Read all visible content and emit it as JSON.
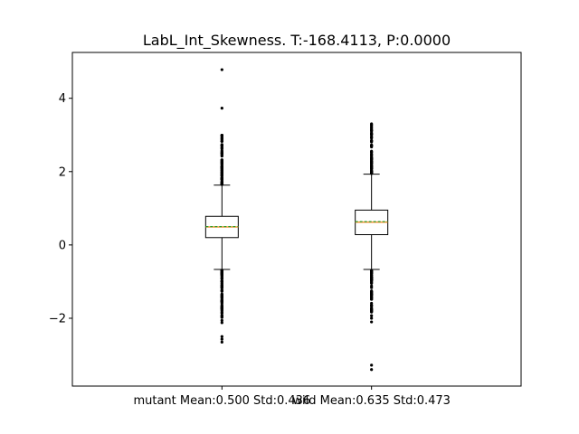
{
  "chart_data": {
    "type": "box",
    "title": "LabL_Int_Skewness. T:-168.4113, P:0.0000",
    "xlabel": "",
    "ylabel": "",
    "ylim": [
      -3.85,
      5.25
    ],
    "yticks": [
      -2,
      0,
      2,
      4
    ],
    "ytick_labels": [
      "−2",
      "0",
      "2",
      "4"
    ],
    "grid": false,
    "categories": [
      "mutant Mean:0.500 Std:0.436",
      "wild Mean:0.635 Std:0.473"
    ],
    "boxes": [
      {
        "q1": 0.2,
        "median": 0.49,
        "mean": 0.5,
        "q3": 0.78,
        "whisker_low": -0.67,
        "whisker_high": 1.63,
        "flier_range_high": [
          1.65,
          3.02
        ],
        "flier_range_low": [
          -1.98,
          -0.69
        ],
        "fliers": [
          4.78,
          3.73,
          -2.06,
          -2.12,
          -2.5,
          -2.57,
          -2.65
        ]
      },
      {
        "q1": 0.28,
        "median": 0.62,
        "mean": 0.635,
        "q3": 0.95,
        "whisker_low": -0.67,
        "whisker_high": 1.93,
        "flier_range_high": [
          1.95,
          3.33
        ],
        "flier_range_low": [
          -1.85,
          -0.69
        ],
        "fliers": [
          -1.93,
          -2.0,
          -2.1,
          -3.28,
          -3.4
        ]
      }
    ],
    "colors": {
      "box": "#000000",
      "median": "#ff7f0e",
      "mean": "#2ca02c",
      "flier": "#000000"
    }
  }
}
